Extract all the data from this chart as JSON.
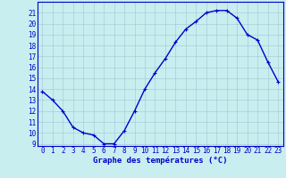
{
  "x": [
    0,
    1,
    2,
    3,
    4,
    5,
    6,
    7,
    8,
    9,
    10,
    11,
    12,
    13,
    14,
    15,
    16,
    17,
    18,
    19,
    20,
    21,
    22,
    23
  ],
  "y": [
    13.8,
    13.0,
    12.0,
    10.5,
    10.0,
    9.8,
    9.0,
    9.0,
    10.2,
    12.0,
    14.0,
    15.5,
    16.8,
    18.3,
    19.5,
    20.2,
    21.0,
    21.2,
    21.2,
    20.5,
    19.0,
    18.5,
    16.5,
    14.7
  ],
  "line_color": "#0000cc",
  "marker": "+",
  "marker_size": 3,
  "marker_lw": 0.8,
  "bg_color": "#c8eef0",
  "grid_color": "#a0c8d0",
  "axis_color": "#0000cc",
  "xlabel": "Graphe des températures (°C)",
  "xlabel_fontsize": 6.5,
  "xtick_labels": [
    "0",
    "1",
    "2",
    "3",
    "4",
    "5",
    "6",
    "7",
    "8",
    "9",
    "10",
    "11",
    "12",
    "13",
    "14",
    "15",
    "16",
    "17",
    "18",
    "19",
    "20",
    "21",
    "22",
    "23"
  ],
  "ylim": [
    8.8,
    22.0
  ],
  "xlim": [
    -0.5,
    23.5
  ],
  "yticks": [
    9,
    10,
    11,
    12,
    13,
    14,
    15,
    16,
    17,
    18,
    19,
    20,
    21
  ],
  "tick_fontsize": 5.5,
  "line_width": 1.0,
  "spine_color": "#0000cc"
}
